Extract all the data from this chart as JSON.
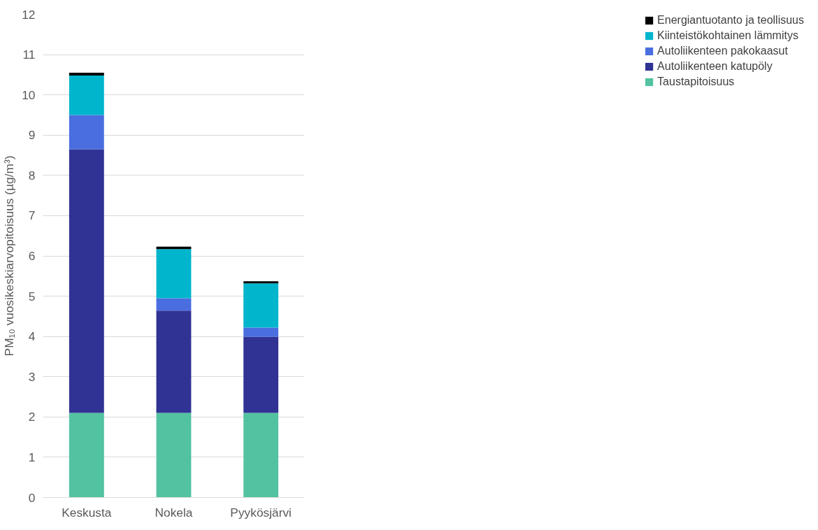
{
  "chart_data": {
    "type": "bar",
    "stacked": true,
    "ylabel": "PM₁₀ vuosikeskiarvopitoisuus (µg/m³)",
    "categories": [
      "Keskusta",
      "Nokela",
      "Pyykösjärvi"
    ],
    "series": [
      {
        "name": "Taustapitoisuus",
        "color": "#52c2a0",
        "values": [
          2.1,
          2.1,
          2.1
        ]
      },
      {
        "name": "Autoliikenteen katupöly",
        "color": "#303294",
        "values": [
          6.55,
          2.54,
          1.89
        ]
      },
      {
        "name": "Autoliikenteen pakokaasut",
        "color": "#4a6ee0",
        "values": [
          0.85,
          0.31,
          0.23
        ]
      },
      {
        "name": "Kiinteistökohtainen lämmitys",
        "color": "#00b5cc",
        "values": [
          0.98,
          1.22,
          1.1
        ]
      },
      {
        "name": "Energiantuotanto ja teollisuus",
        "color": "#000000",
        "values": [
          0.07,
          0.06,
          0.05
        ]
      }
    ],
    "ylim": [
      0,
      12
    ],
    "yticks": [
      0,
      1,
      2,
      3,
      4,
      5,
      6,
      7,
      8,
      9,
      10,
      11,
      12
    ],
    "grid": "y",
    "legend": "right"
  }
}
